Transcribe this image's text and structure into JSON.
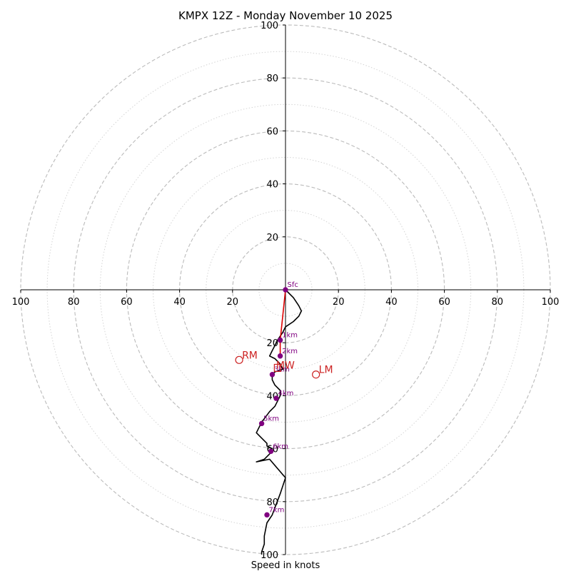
{
  "chart_data": {
    "type": "hodograph",
    "title": "KMPX 12Z - Monday November 10 2025",
    "xlabel": "Speed in knots",
    "rmax": 100,
    "rings_major": [
      20,
      40,
      60,
      80,
      100
    ],
    "rings_minor": [
      10,
      30,
      50,
      70,
      90
    ],
    "axis_ticks_x": [
      "100",
      "80",
      "60",
      "40",
      "20",
      "20",
      "40",
      "60",
      "80",
      "100"
    ],
    "axis_ticks_x_values": [
      -100,
      -80,
      -60,
      -40,
      -20,
      20,
      40,
      60,
      80,
      100
    ],
    "axis_ticks_y": [
      "20",
      "40",
      "60",
      "80",
      "100"
    ],
    "axis_ticks_y_values": [
      20,
      40,
      60,
      80,
      100
    ],
    "axis_ticks_y_lower": [
      "20",
      "40",
      "60",
      "80",
      "100"
    ],
    "axis_ticks_y_lower_values": [
      -20,
      -40,
      -60,
      -80,
      -100
    ],
    "colors": {
      "profile": "#000000",
      "lowlevel": "#dd0000",
      "height_marker": "#800080",
      "motion": "#cc2222",
      "rings": "#bbbbbb"
    },
    "profile": {
      "u": [
        0,
        3,
        5,
        6,
        5,
        3,
        0,
        -1,
        -3,
        -4,
        -5,
        -6,
        -4,
        -2,
        -1,
        -4,
        -5,
        -5,
        -4,
        -2,
        -2,
        -3,
        -4,
        -6,
        -9,
        -11,
        -9,
        -7,
        -7,
        -5,
        -5,
        -8,
        -11,
        -6,
        0,
        -2,
        -5,
        -7,
        -8,
        -8,
        -9,
        -9
      ],
      "v": [
        0,
        -3,
        -6,
        -8,
        -10,
        -12,
        -14,
        -16,
        -19,
        -21,
        -23,
        -25,
        -26,
        -28,
        -30,
        -31,
        -32,
        -34,
        -36,
        -38,
        -40,
        -42,
        -44,
        -46,
        -50,
        -54,
        -56,
        -58,
        -59,
        -60,
        -61,
        -64,
        -65,
        -64,
        -71,
        -77,
        -85,
        -88,
        -93,
        -96,
        -99,
        -100
      ]
    },
    "lowlevel_segment": {
      "u": [
        0,
        -2,
        -2
      ],
      "v": [
        0,
        -19,
        -25
      ]
    },
    "height_markers": [
      {
        "label": "Sfc",
        "u": 0,
        "v": 0
      },
      {
        "label": "1km",
        "u": -2,
        "v": -19
      },
      {
        "label": "2km",
        "u": -2,
        "v": -25
      },
      {
        "label": "3km",
        "u": -5,
        "v": -32
      },
      {
        "label": "4km",
        "u": -3.5,
        "v": -41
      },
      {
        "label": "5km",
        "u": -9,
        "v": -50.5
      },
      {
        "label": "6km",
        "u": -5.5,
        "v": -61
      },
      {
        "label": "7km",
        "u": -7,
        "v": -85
      }
    ],
    "storm_motion": [
      {
        "label": "RM",
        "u": -17.5,
        "v": -26.5
      },
      {
        "label": "LM",
        "u": 11.5,
        "v": -32
      },
      {
        "label": "MW",
        "u": -3,
        "v": -29.5
      }
    ]
  }
}
